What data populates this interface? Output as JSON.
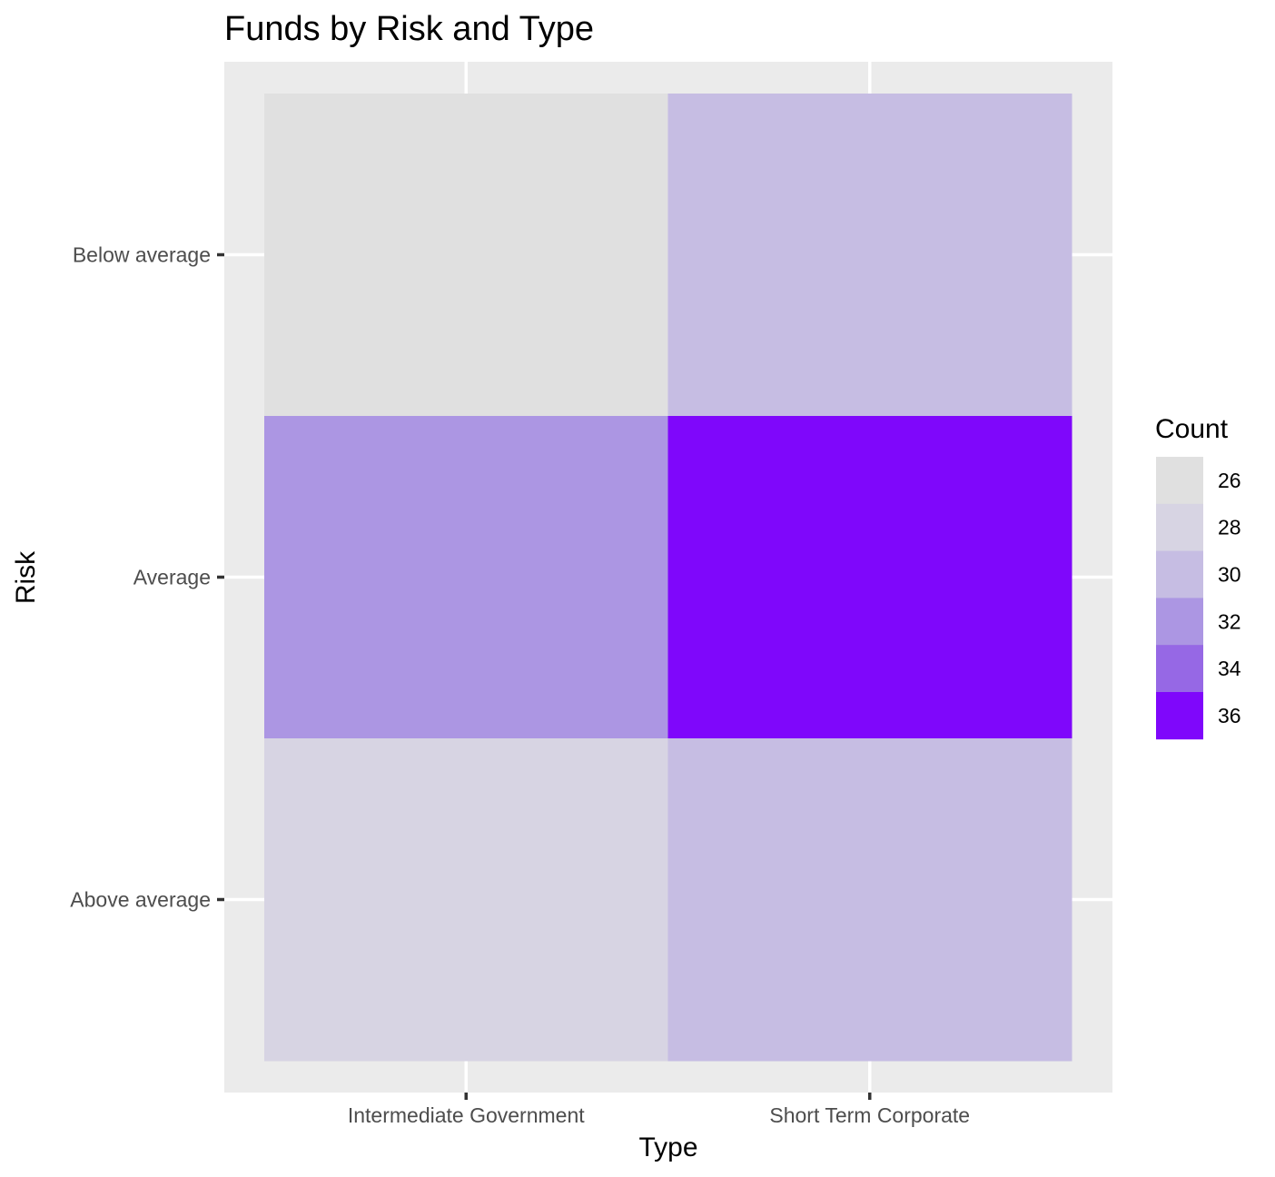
{
  "chart_data": {
    "type": "heatmap",
    "title": "Funds by Risk and Type",
    "xlabel": "Type",
    "ylabel": "Risk",
    "x_categories": [
      "Intermediate Government",
      "Short Term Corporate"
    ],
    "y_categories": [
      "Above average",
      "Average",
      "Below average"
    ],
    "cells": [
      {
        "x": "Intermediate Government",
        "y": "Below average",
        "value": 26
      },
      {
        "x": "Short Term Corporate",
        "y": "Below average",
        "value": 30
      },
      {
        "x": "Intermediate Government",
        "y": "Average",
        "value": 32
      },
      {
        "x": "Short Term Corporate",
        "y": "Average",
        "value": 36
      },
      {
        "x": "Intermediate Government",
        "y": "Above average",
        "value": 28
      },
      {
        "x": "Short Term Corporate",
        "y": "Above average",
        "value": 30
      }
    ],
    "legend": {
      "title": "Count",
      "position": "right",
      "breaks": [
        26,
        28,
        30,
        32,
        34,
        36
      ],
      "colors": [
        "#e0e0e0",
        "#d7d4e3",
        "#c6bde3",
        "#ac96e3",
        "#9668e5",
        "#7f07fb"
      ]
    },
    "grid": true,
    "colors": {
      "panel_background": "#ebebeb",
      "grid_line": "#ffffff",
      "low": "#e0e0e0",
      "high": "#7f07fb"
    }
  }
}
